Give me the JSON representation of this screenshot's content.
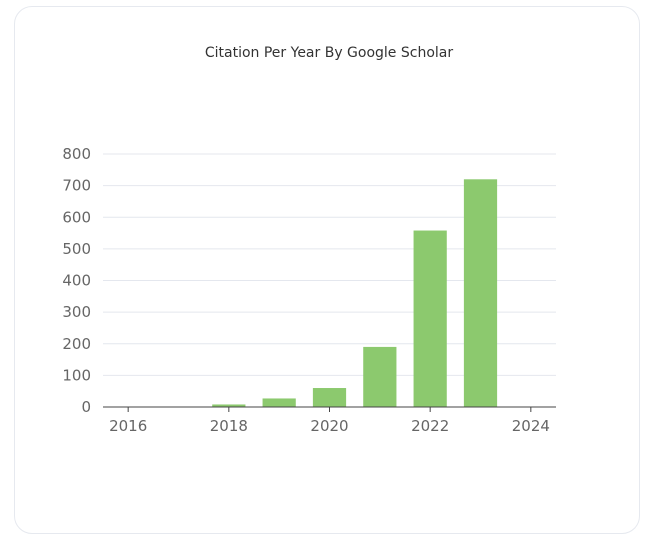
{
  "chart_data": {
    "type": "bar",
    "title": "Citation Per Year By Google Scholar",
    "xlabel": "",
    "ylabel": "",
    "categories": [
      2016,
      2017,
      2018,
      2019,
      2020,
      2021,
      2022,
      2023
    ],
    "values": [
      0,
      0,
      8,
      27,
      60,
      190,
      558,
      720
    ],
    "ylim": [
      0,
      800
    ],
    "yticks": [
      0,
      100,
      200,
      300,
      400,
      500,
      600,
      700,
      800
    ],
    "xlim": [
      2015.5,
      2024.5
    ],
    "xticks": [
      2016,
      2018,
      2020,
      2022,
      2024
    ],
    "grid": true,
    "colors": {
      "bar": "#8cc96e",
      "grid": "#e4e7ee",
      "axis": "#444444",
      "tick_label": "#666666"
    }
  }
}
